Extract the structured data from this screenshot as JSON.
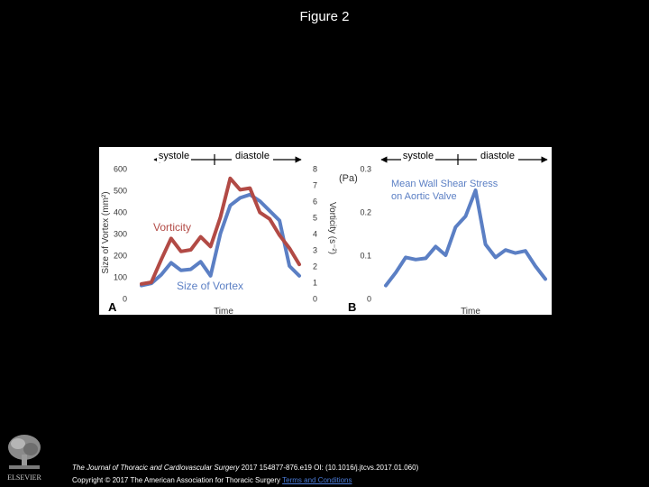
{
  "page": {
    "title": "Figure 2",
    "citation_journal": "The Journal of Thoracic and Cardiovascular Surgery",
    "citation_rest": " 2017 154877-876.e19 OI: (10.1016/j.jtcvs.2017.01.060)",
    "copyright": "Copyright © 2017 The American Association for Thoracic Surgery ",
    "terms_link": "Terms and Conditions",
    "publisher_logo_icon": "elsevier-tree-logo",
    "publisher_logo_text": "ELSEVIER"
  },
  "chart_data": [
    {
      "type": "line",
      "panel": "A",
      "phases": [
        "systole",
        "diastole"
      ],
      "xlabel": "Time",
      "ylabel": "Size of Vortex (mm²)",
      "ylabel_right": "Vorticity (s⁻²)",
      "ylim": [
        0,
        600
      ],
      "yticks": [
        "0",
        "100",
        "200",
        "300",
        "400",
        "500",
        "600"
      ],
      "ylim_right": [
        0,
        8
      ],
      "yticks_right": [
        "0",
        "1",
        "2",
        "3",
        "4",
        "5",
        "6",
        "7",
        "8"
      ],
      "series": [
        {
          "name": "Size of Vortex",
          "axis": "left",
          "color": "#5b7fc4",
          "values": [
            60,
            70,
            110,
            165,
            130,
            135,
            170,
            105,
            300,
            430,
            465,
            480,
            450,
            405,
            360,
            150,
            105
          ]
        },
        {
          "name": "Vorticity",
          "axis": "right",
          "color": "#b24a45",
          "values": [
            0.9,
            1.0,
            2.4,
            3.7,
            2.9,
            3.0,
            3.8,
            3.2,
            5.0,
            7.4,
            6.7,
            6.8,
            5.3,
            4.9,
            3.9,
            3.1,
            2.1
          ]
        }
      ]
    },
    {
      "type": "line",
      "panel": "B",
      "phases": [
        "systole",
        "diastole"
      ],
      "xlabel": "Time",
      "ylabel": "(Pa)",
      "ylim": [
        0,
        0.3
      ],
      "yticks": [
        "0",
        "0.1",
        "0.2",
        "0.3"
      ],
      "series": [
        {
          "name": "Mean Wall Shear Stress on Aortic Valve",
          "color": "#5b7fc4",
          "values": [
            0.03,
            0.06,
            0.095,
            0.09,
            0.093,
            0.12,
            0.1,
            0.165,
            0.19,
            0.25,
            0.125,
            0.095,
            0.112,
            0.105,
            0.11,
            0.075,
            0.045
          ]
        }
      ]
    }
  ]
}
